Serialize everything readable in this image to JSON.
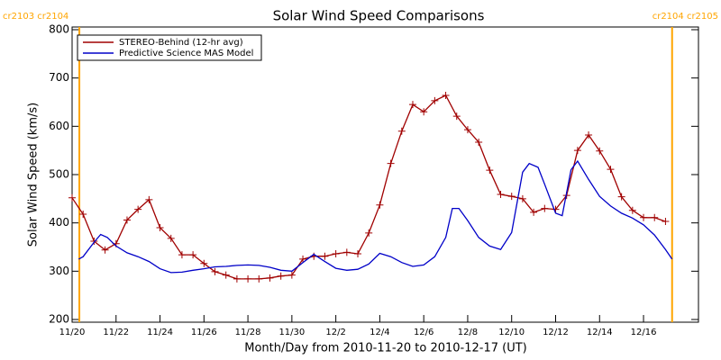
{
  "chart_data": {
    "type": "line",
    "title": "Solar Wind Speed Comparisons",
    "xlabel": "Month/Day from 2010-11-20 to 2010-12-17 (UT)",
    "ylabel": "Solar Wind Speed (km/s)",
    "xlim": [
      0,
      28.5
    ],
    "xticks": [
      {
        "value": 0,
        "label": "11/20"
      },
      {
        "value": 2,
        "label": "11/22"
      },
      {
        "value": 4,
        "label": "11/24"
      },
      {
        "value": 6,
        "label": "11/26"
      },
      {
        "value": 8,
        "label": "11/28"
      },
      {
        "value": 10,
        "label": "11/30"
      },
      {
        "value": 12,
        "label": "12/2"
      },
      {
        "value": 14,
        "label": "12/4"
      },
      {
        "value": 16,
        "label": "12/6"
      },
      {
        "value": 18,
        "label": "12/8"
      },
      {
        "value": 20,
        "label": "12/10"
      },
      {
        "value": 22,
        "label": "12/12"
      },
      {
        "value": 24,
        "label": "12/14"
      },
      {
        "value": 26,
        "label": "12/16"
      }
    ],
    "ylim": [
      200,
      800
    ],
    "yticks": [
      200,
      300,
      400,
      500,
      600,
      700,
      800
    ],
    "legend": "upper left",
    "annotations": [
      {
        "label": "cr2103 cr2104",
        "x": 0.33,
        "color": "#ffa500"
      },
      {
        "label": "cr2104 cr2105",
        "x": 27.3,
        "color": "#ffa500"
      }
    ],
    "series": [
      {
        "name": "STEREO-Behind (12-hr avg)",
        "color": "#a00000",
        "marker": "+",
        "x": [
          0,
          0.5,
          1,
          1.5,
          2,
          2.5,
          3,
          3.5,
          4,
          4.5,
          5,
          5.5,
          6,
          6.5,
          7,
          7.5,
          8,
          8.5,
          9,
          9.5,
          10,
          10.5,
          11,
          11.5,
          12,
          12.5,
          13,
          13.5,
          14,
          14.5,
          15,
          15.5,
          16,
          16.5,
          17,
          17.5,
          18,
          18.5,
          19,
          19.5,
          20,
          20.5,
          21,
          21.5,
          22,
          22.5,
          23,
          23.5,
          24,
          24.5,
          25,
          25.5,
          26,
          26.5,
          27
        ],
        "values": [
          452,
          418,
          362,
          344,
          357,
          406,
          428,
          448,
          390,
          368,
          334,
          334,
          316,
          299,
          292,
          284,
          284,
          284,
          286,
          290,
          292,
          325,
          331,
          331,
          336,
          339,
          336,
          379,
          437,
          523,
          590,
          645,
          630,
          653,
          664,
          621,
          593,
          567,
          509,
          459,
          455,
          450,
          422,
          430,
          428,
          457,
          550,
          582,
          549,
          511,
          454,
          426,
          411,
          411,
          403
        ]
      },
      {
        "name": "Predictive Science MAS Model",
        "color": "#0000c8",
        "x": [
          0.3,
          0.5,
          1,
          1.3,
          1.6,
          2,
          2.5,
          3,
          3.5,
          4,
          4.5,
          5,
          5.5,
          6,
          6.5,
          7,
          7.5,
          8,
          8.5,
          9,
          9.5,
          10,
          10.5,
          11,
          11.5,
          12,
          12.5,
          13,
          13.5,
          14,
          14.5,
          15,
          15.5,
          16,
          16.5,
          17,
          17.3,
          17.6,
          18,
          18.5,
          19,
          19.5,
          20,
          20.5,
          20.8,
          21.2,
          21.5,
          22,
          22.3,
          22.7,
          23,
          23.5,
          24,
          24.5,
          25,
          25.5,
          26,
          26.5,
          27,
          27.3
        ],
        "values": [
          325,
          330,
          360,
          376,
          370,
          352,
          338,
          330,
          320,
          305,
          297,
          298,
          302,
          305,
          309,
          310,
          312,
          313,
          312,
          308,
          302,
          300,
          318,
          335,
          320,
          306,
          302,
          304,
          315,
          337,
          330,
          318,
          310,
          313,
          330,
          370,
          430,
          430,
          405,
          370,
          352,
          345,
          380,
          505,
          523,
          515,
          480,
          420,
          415,
          510,
          528,
          490,
          455,
          435,
          420,
          410,
          396,
          375,
          345,
          325
        ]
      }
    ]
  }
}
